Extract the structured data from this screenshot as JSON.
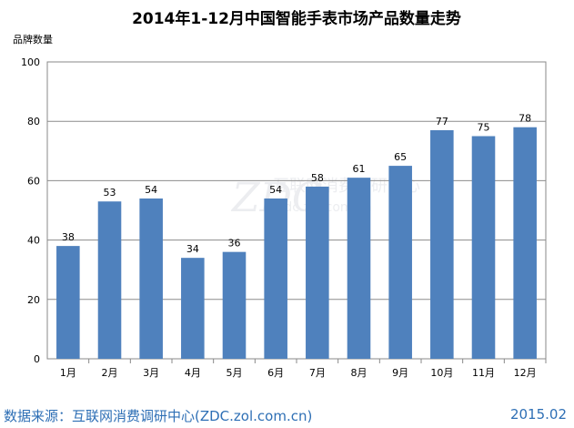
{
  "chart_data": {
    "type": "bar",
    "title": "2014年1-12月中国智能手表市场产品数量走势",
    "ylabel": "品牌数量",
    "xlabel": "",
    "categories": [
      "1月",
      "2月",
      "3月",
      "4月",
      "5月",
      "6月",
      "7月",
      "8月",
      "9月",
      "10月",
      "11月",
      "12月"
    ],
    "values": [
      38,
      53,
      54,
      34,
      36,
      54,
      58,
      61,
      65,
      77,
      75,
      78
    ],
    "ylim": [
      0,
      100
    ],
    "yticks": [
      0,
      20,
      40,
      60,
      80,
      100
    ],
    "grid": true,
    "legend": "none",
    "bar_color": "#4f81bd",
    "data_labels": true
  },
  "watermark": {
    "logo": "ZDC",
    "text": "互联网消费调研中心",
    "url": "zdc.zol.com.cn"
  },
  "footer": {
    "source": "数据来源：互联网消费调研中心(ZDC.zol.com.cn)",
    "date": "2015.02"
  }
}
